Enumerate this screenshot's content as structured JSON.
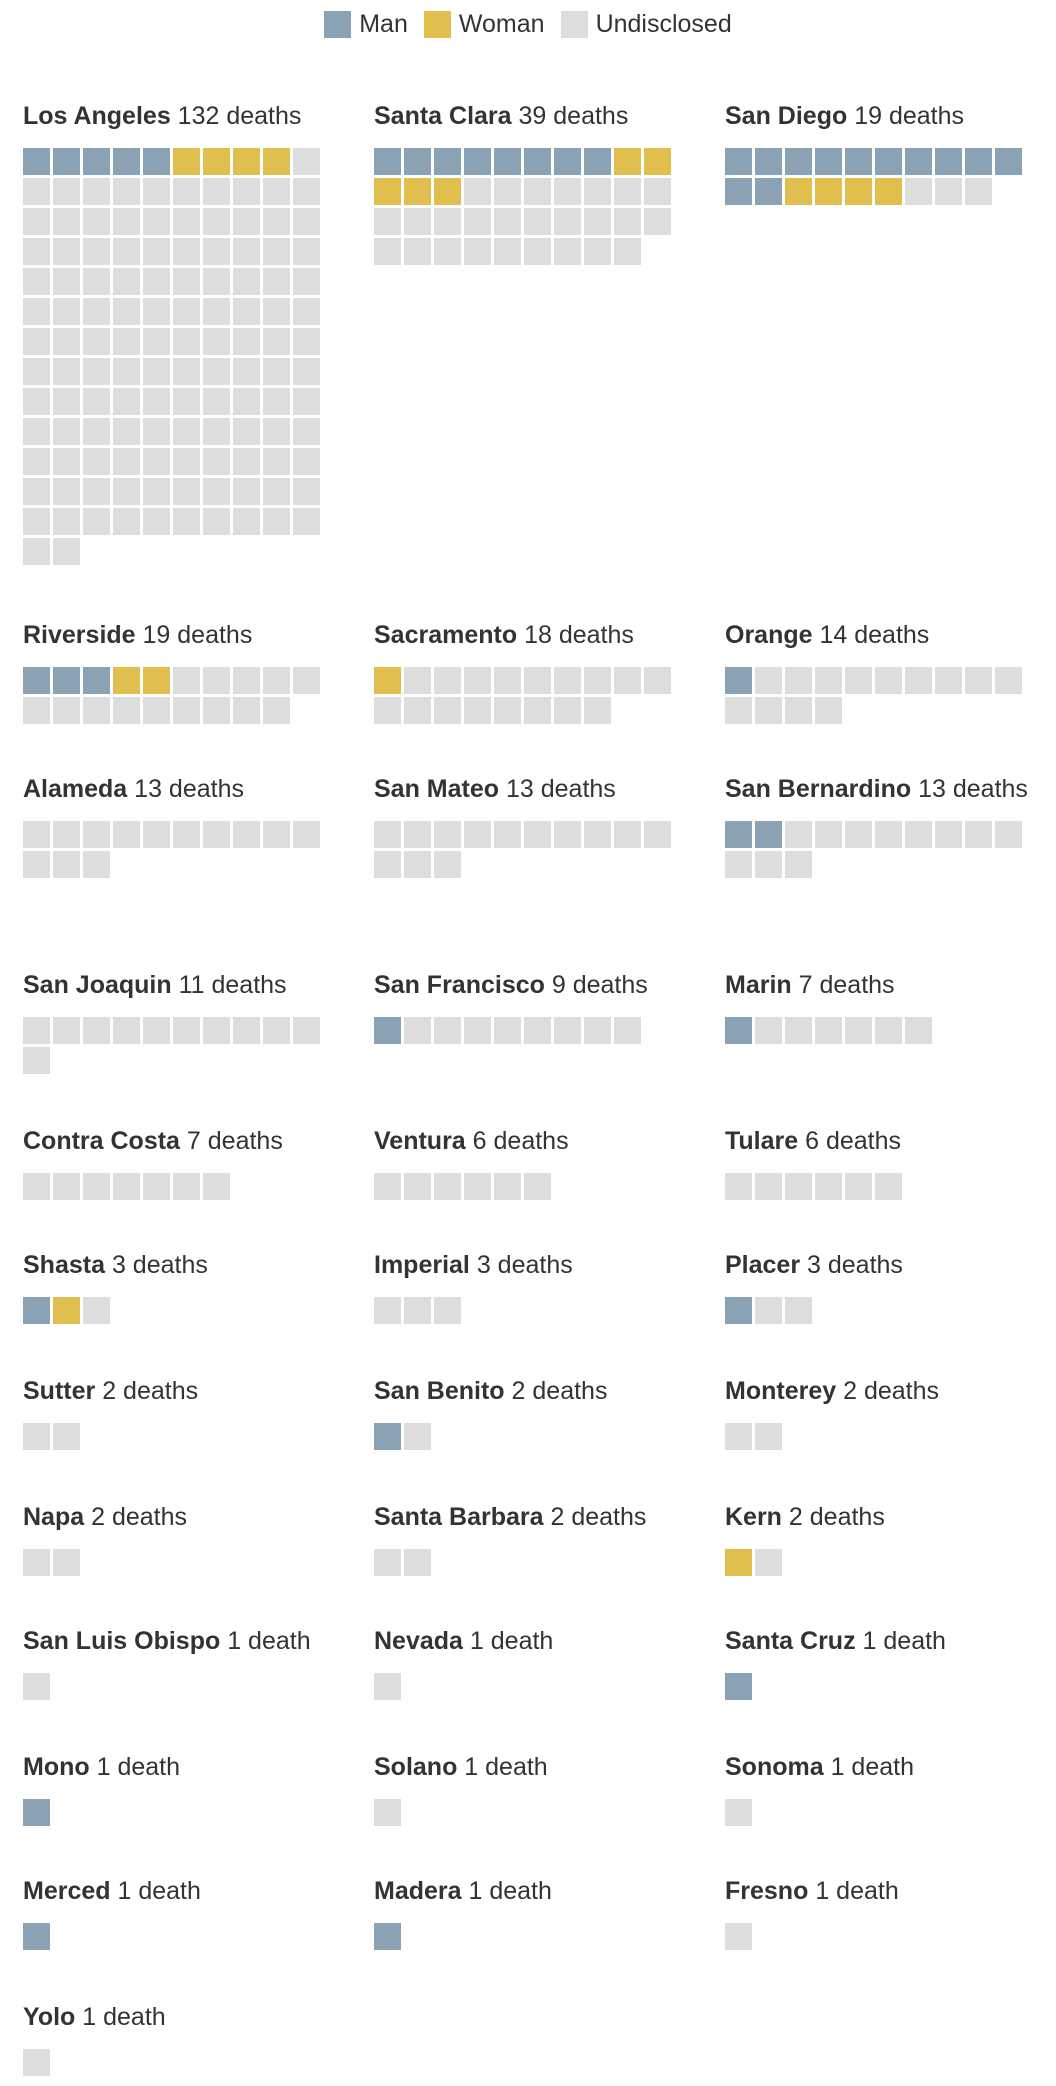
{
  "legend": [
    {
      "key": "man",
      "label": "Man",
      "color": "#8aa2b3"
    },
    {
      "key": "woman",
      "label": "Woman",
      "color": "#e1bf4f"
    },
    {
      "key": "undisclosed",
      "label": "Undisclosed",
      "color": "#dddddd"
    }
  ],
  "chart_data": {
    "type": "waffle",
    "units_per_square": 1,
    "series": [
      "Man",
      "Woman",
      "Undisclosed"
    ],
    "counties": [
      {
        "name": "Los Angeles",
        "total": 132,
        "suffix": "132 deaths",
        "man": 5,
        "woman": 4,
        "undisclosed": 123
      },
      {
        "name": "Santa Clara",
        "total": 39,
        "suffix": "39 deaths",
        "man": 8,
        "woman": 5,
        "undisclosed": 26
      },
      {
        "name": "San Diego",
        "total": 19,
        "suffix": "19 deaths",
        "man": 12,
        "woman": 4,
        "undisclosed": 3
      },
      {
        "name": "Riverside",
        "total": 19,
        "suffix": "19 deaths",
        "man": 3,
        "woman": 2,
        "undisclosed": 14
      },
      {
        "name": "Sacramento",
        "total": 18,
        "suffix": "18 deaths",
        "man": 0,
        "woman": 1,
        "undisclosed": 17
      },
      {
        "name": "Orange",
        "total": 14,
        "suffix": "14 deaths",
        "man": 1,
        "woman": 0,
        "undisclosed": 13
      },
      {
        "name": "Alameda",
        "total": 13,
        "suffix": "13 deaths",
        "man": 0,
        "woman": 0,
        "undisclosed": 13
      },
      {
        "name": "San Mateo",
        "total": 13,
        "suffix": "13 deaths",
        "man": 0,
        "woman": 0,
        "undisclosed": 13
      },
      {
        "name": "San Bernardino",
        "total": 13,
        "suffix": "13 deaths",
        "man": 2,
        "woman": 0,
        "undisclosed": 11
      },
      {
        "name": "San Joaquin",
        "total": 11,
        "suffix": "11 deaths",
        "man": 0,
        "woman": 0,
        "undisclosed": 11
      },
      {
        "name": "San Francisco",
        "total": 9,
        "suffix": "9 deaths",
        "man": 1,
        "woman": 0,
        "undisclosed": 8
      },
      {
        "name": "Marin",
        "total": 7,
        "suffix": "7 deaths",
        "man": 1,
        "woman": 0,
        "undisclosed": 6
      },
      {
        "name": "Contra Costa",
        "total": 7,
        "suffix": "7 deaths",
        "man": 0,
        "woman": 0,
        "undisclosed": 7
      },
      {
        "name": "Ventura",
        "total": 6,
        "suffix": "6 deaths",
        "man": 0,
        "woman": 0,
        "undisclosed": 6
      },
      {
        "name": "Tulare",
        "total": 6,
        "suffix": "6 deaths",
        "man": 0,
        "woman": 0,
        "undisclosed": 6
      },
      {
        "name": "Shasta",
        "total": 3,
        "suffix": "3 deaths",
        "man": 1,
        "woman": 1,
        "undisclosed": 1
      },
      {
        "name": "Imperial",
        "total": 3,
        "suffix": "3 deaths",
        "man": 0,
        "woman": 0,
        "undisclosed": 3
      },
      {
        "name": "Placer",
        "total": 3,
        "suffix": "3 deaths",
        "man": 1,
        "woman": 0,
        "undisclosed": 2
      },
      {
        "name": "Sutter",
        "total": 2,
        "suffix": "2 deaths",
        "man": 0,
        "woman": 0,
        "undisclosed": 2
      },
      {
        "name": "San Benito",
        "total": 2,
        "suffix": "2 deaths",
        "man": 1,
        "woman": 0,
        "undisclosed": 1
      },
      {
        "name": "Monterey",
        "total": 2,
        "suffix": "2 deaths",
        "man": 0,
        "woman": 0,
        "undisclosed": 2
      },
      {
        "name": "Napa",
        "total": 2,
        "suffix": "2 deaths",
        "man": 0,
        "woman": 0,
        "undisclosed": 2
      },
      {
        "name": "Santa Barbara",
        "total": 2,
        "suffix": "2 deaths",
        "man": 0,
        "woman": 0,
        "undisclosed": 2
      },
      {
        "name": "Kern",
        "total": 2,
        "suffix": "2 deaths",
        "man": 0,
        "woman": 1,
        "undisclosed": 1
      },
      {
        "name": "San Luis Obispo",
        "total": 1,
        "suffix": "1 death",
        "man": 0,
        "woman": 0,
        "undisclosed": 1
      },
      {
        "name": "Nevada",
        "total": 1,
        "suffix": "1 death",
        "man": 0,
        "woman": 0,
        "undisclosed": 1
      },
      {
        "name": "Santa Cruz",
        "total": 1,
        "suffix": "1 death",
        "man": 1,
        "woman": 0,
        "undisclosed": 0
      },
      {
        "name": "Mono",
        "total": 1,
        "suffix": "1 death",
        "man": 1,
        "woman": 0,
        "undisclosed": 0
      },
      {
        "name": "Solano",
        "total": 1,
        "suffix": "1 death",
        "man": 0,
        "woman": 0,
        "undisclosed": 1
      },
      {
        "name": "Sonoma",
        "total": 1,
        "suffix": "1 death",
        "man": 0,
        "woman": 0,
        "undisclosed": 1
      },
      {
        "name": "Merced",
        "total": 1,
        "suffix": "1 death",
        "man": 1,
        "woman": 0,
        "undisclosed": 0
      },
      {
        "name": "Madera",
        "total": 1,
        "suffix": "1 death",
        "man": 1,
        "woman": 0,
        "undisclosed": 0
      },
      {
        "name": "Fresno",
        "total": 1,
        "suffix": "1 death",
        "man": 0,
        "woman": 0,
        "undisclosed": 1
      },
      {
        "name": "Yolo",
        "total": 1,
        "suffix": "1 death",
        "man": 0,
        "woman": 0,
        "undisclosed": 1
      }
    ]
  }
}
